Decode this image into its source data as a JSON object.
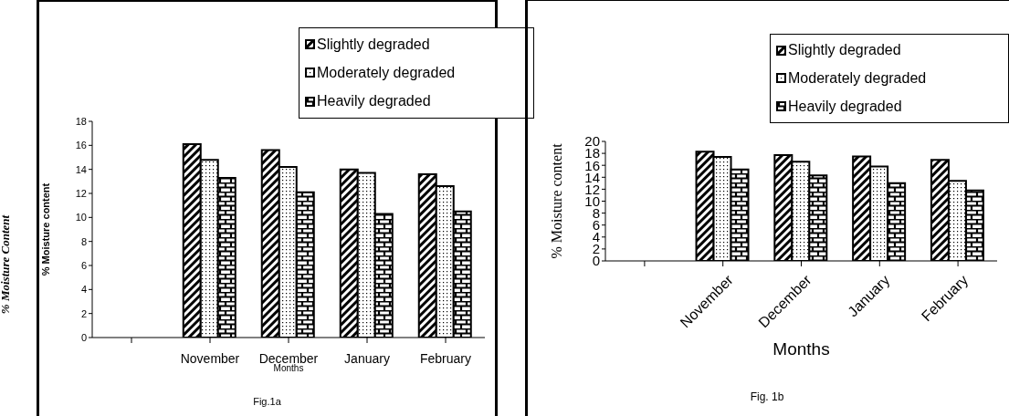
{
  "chart_data": [
    {
      "type": "bar",
      "ylabel": "% Moisture content",
      "xlabel": "Months",
      "annotations": [
        "% Moisture Content",
        "Fig.1a"
      ],
      "categories": [
        null,
        "November",
        "December",
        "January",
        "February"
      ],
      "series": [
        {
          "name": "Slightly degraded",
          "color": "#000000",
          "values": [
            null,
            16.1,
            15.6,
            14.0,
            13.6
          ]
        },
        {
          "name": "Moderately degraded",
          "color": "#000000",
          "values": [
            null,
            14.8,
            14.2,
            13.7,
            12.6
          ]
        },
        {
          "name": "Heavily degraded",
          "color": "#000000",
          "values": [
            null,
            13.3,
            12.1,
            10.3,
            10.5
          ]
        }
      ],
      "ylim": [
        0,
        18
      ],
      "yticks": [
        0,
        2,
        4,
        6,
        8,
        10,
        12,
        14,
        16,
        18
      ],
      "legend": "top right",
      "grid": false
    },
    {
      "type": "bar",
      "ylabel": "% Moisture content",
      "xlabel": "Months",
      "annotations": [
        "Fig. 1b"
      ],
      "categories": [
        null,
        "November",
        "December",
        "January",
        "February"
      ],
      "series": [
        {
          "name": "Slightly degraded",
          "color": "#000000",
          "values": [
            null,
            18.3,
            17.7,
            17.5,
            16.9
          ]
        },
        {
          "name": "Moderately degraded",
          "color": "#000000",
          "values": [
            null,
            17.4,
            16.6,
            15.8,
            13.4
          ]
        },
        {
          "name": "Heavily degraded",
          "color": "#000000",
          "values": [
            null,
            15.3,
            14.3,
            13.0,
            11.8
          ]
        }
      ],
      "ylim": [
        0,
        20
      ],
      "yticks": [
        0,
        2,
        4,
        6,
        8,
        10,
        12,
        14,
        16,
        18,
        20
      ],
      "legend": "top right",
      "grid": false
    }
  ]
}
